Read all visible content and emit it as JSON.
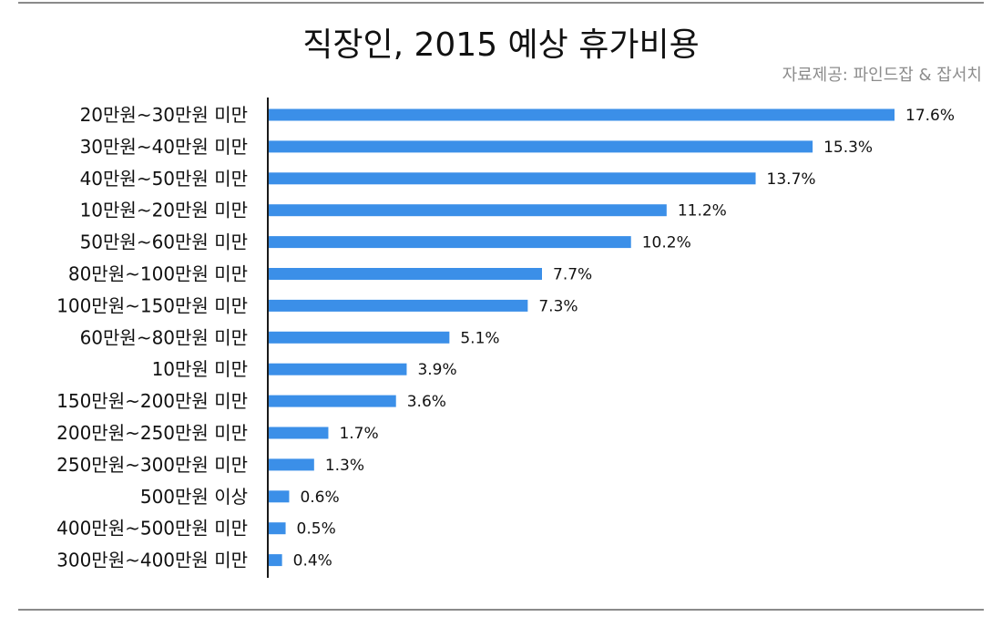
{
  "title": "직장인, 2015 예상 휴가비용",
  "source": "자료제공: 파인드잡 & 잡서치",
  "colors": {
    "bar": "#3b8fe8",
    "axis": "#1a1a1a",
    "rule": "#8a8a8a"
  },
  "chart_data": {
    "type": "bar",
    "orientation": "horizontal",
    "title": "직장인, 2015 예상 휴가비용",
    "categories": [
      "20만원~30만원 미만",
      "30만원~40만원 미만",
      "40만원~50만원 미만",
      "10만원~20만원 미만",
      "50만원~60만원 미만",
      "80만원~100만원 미만",
      "100만원~150만원 미만",
      "60만원~80만원 미만",
      "10만원 미만",
      "150만원~200만원 미만",
      "200만원~250만원 미만",
      "250만원~300만원 미만",
      "500만원 이상",
      "400만원~500만원 미만",
      "300만원~400만원 미만"
    ],
    "values": [
      17.6,
      15.3,
      13.7,
      11.2,
      10.2,
      7.7,
      7.3,
      5.1,
      3.9,
      3.6,
      1.7,
      1.3,
      0.6,
      0.5,
      0.4
    ],
    "value_labels": [
      "17.6%",
      "15.3%",
      "13.7%",
      "11.2%",
      "10.2%",
      "7.7%",
      "7.3%",
      "5.1%",
      "3.9%",
      "3.6%",
      "1.7%",
      "1.3%",
      "0.6%",
      "0.5%",
      "0.4%"
    ],
    "unit": "%",
    "xlim": [
      0,
      17.6
    ],
    "grid": false,
    "legend": "none"
  }
}
